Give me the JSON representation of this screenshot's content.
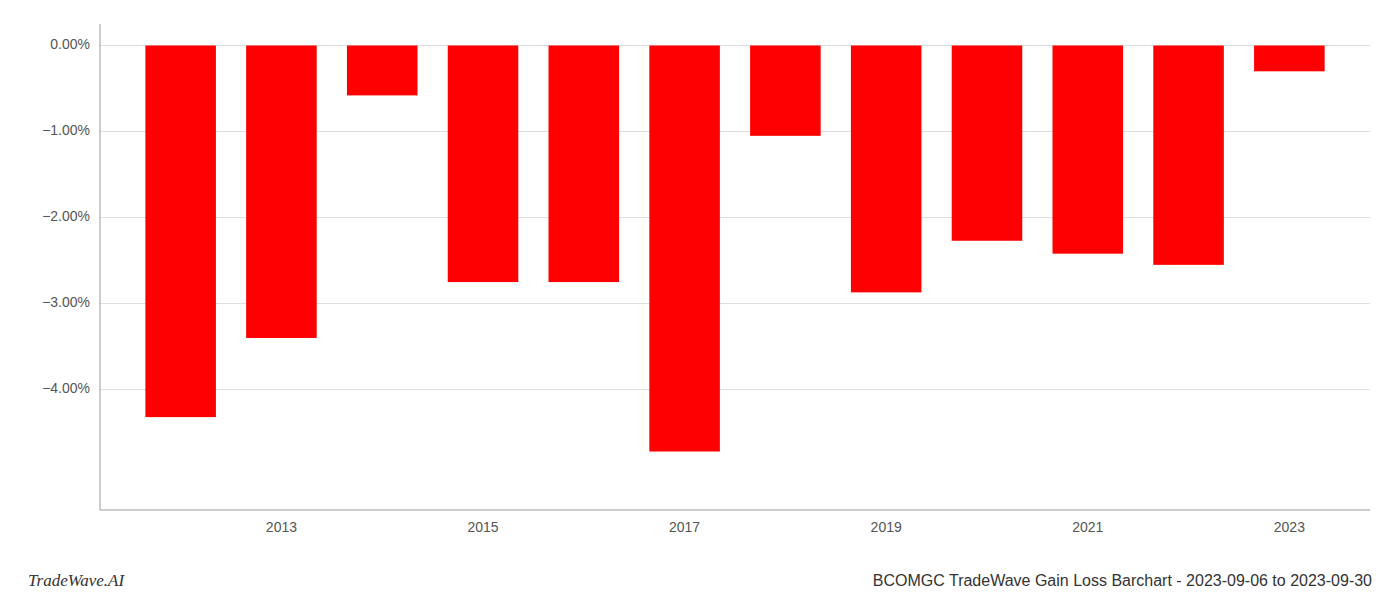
{
  "chart_data": {
    "type": "bar",
    "title": "BCOMGC TradeWave Gain Loss Barchart - 2023-09-06 to 2023-09-30",
    "annotations": [
      "TradeWave.AI"
    ],
    "x": [
      2012,
      2013,
      2014,
      2015,
      2016,
      2017,
      2018,
      2019,
      2020,
      2021,
      2022,
      2023
    ],
    "values": [
      -4.32,
      -3.4,
      -0.58,
      -2.75,
      -2.75,
      -4.72,
      -1.05,
      -2.87,
      -2.27,
      -2.42,
      -2.55,
      -0.3
    ],
    "color": "#ff0000",
    "xlim": [
      2011.2,
      2023.8
    ],
    "xticks": [
      2013,
      2015,
      2017,
      2019,
      2021,
      2023
    ],
    "ylim": [
      -5.4,
      0.25
    ],
    "yticks": [
      {
        "value": 0.0,
        "label": "0.00%"
      },
      {
        "value": -1.0,
        "label": "−1.00%"
      },
      {
        "value": -2.0,
        "label": "−2.00%"
      },
      {
        "value": -3.0,
        "label": "−3.00%"
      },
      {
        "value": -4.0,
        "label": "−4.00%"
      }
    ],
    "grid": true
  }
}
